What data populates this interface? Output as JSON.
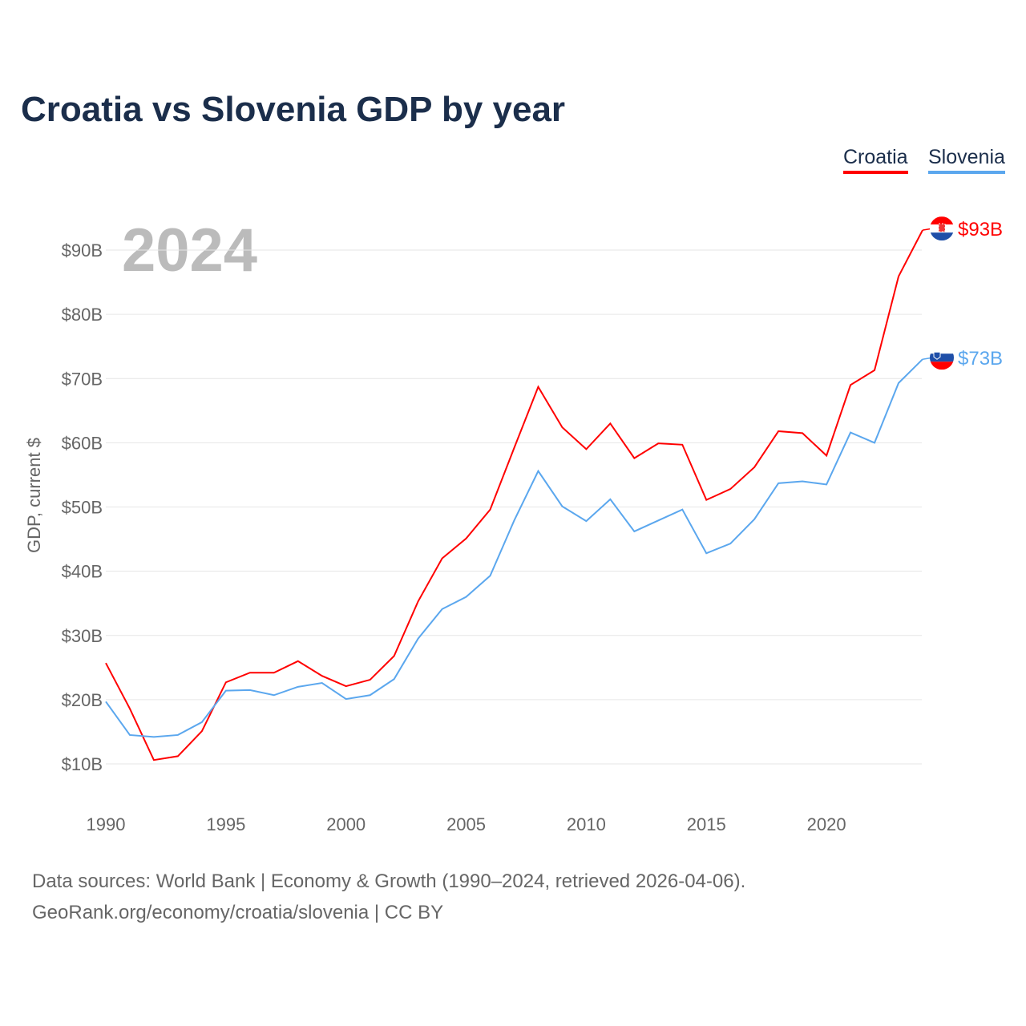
{
  "title": "Croatia vs Slovenia GDP by year",
  "year_watermark": "2024",
  "footer": {
    "line1": "Data sources: World Bank | Economy & Growth (1990–2024, retrieved 2026-04-06).",
    "line2": "GeoRank.org/economy/croatia/slovenia | CC BY"
  },
  "chart_data": {
    "type": "line",
    "title": "Croatia vs Slovenia GDP by year",
    "ylabel": "GDP, current $",
    "xlabel": "",
    "ylim": [
      0,
      100
    ],
    "yticks": [
      10,
      20,
      30,
      40,
      50,
      60,
      70,
      80,
      90
    ],
    "ytick_labels": [
      "$10B",
      "$20B",
      "$30B",
      "$40B",
      "$50B",
      "$60B",
      "$70B",
      "$80B",
      "$90B"
    ],
    "xticks": [
      1990,
      1995,
      2000,
      2005,
      2010,
      2015,
      2020
    ],
    "xtick_labels": [
      "1990",
      "1995",
      "2000",
      "2005",
      "2010",
      "2015",
      "2020"
    ],
    "x": [
      1990,
      1991,
      1992,
      1993,
      1994,
      1995,
      1996,
      1997,
      1998,
      1999,
      2000,
      2001,
      2002,
      2003,
      2004,
      2005,
      2006,
      2007,
      2008,
      2009,
      2010,
      2011,
      2012,
      2013,
      2014,
      2015,
      2016,
      2017,
      2018,
      2019,
      2020,
      2021,
      2022,
      2023,
      2024
    ],
    "legend_position": "top-right",
    "series": [
      {
        "name": "Croatia",
        "color": "#ff0000",
        "end_label": "$93B",
        "values": [
          25.7,
          18.6,
          10.6,
          11.2,
          15.1,
          22.7,
          24.2,
          24.2,
          26.0,
          23.7,
          22.1,
          23.1,
          26.8,
          35.3,
          42.0,
          45.1,
          49.6,
          59.2,
          68.7,
          62.4,
          59.0,
          63.0,
          57.6,
          59.9,
          59.7,
          51.1,
          52.8,
          56.2,
          61.8,
          61.5,
          58.0,
          69.0,
          71.3,
          85.9,
          93.1
        ]
      },
      {
        "name": "Slovenia",
        "color": "#5ba7ee",
        "end_label": "$73B",
        "values": [
          19.7,
          14.5,
          14.2,
          14.5,
          16.5,
          21.4,
          21.5,
          20.7,
          22.0,
          22.6,
          20.1,
          20.7,
          23.2,
          29.5,
          34.1,
          36.0,
          39.3,
          47.9,
          55.6,
          50.1,
          47.8,
          51.2,
          46.2,
          47.9,
          49.6,
          42.8,
          44.3,
          48.1,
          53.7,
          54.0,
          53.5,
          61.6,
          60.0,
          69.3,
          73.0
        ]
      }
    ]
  }
}
